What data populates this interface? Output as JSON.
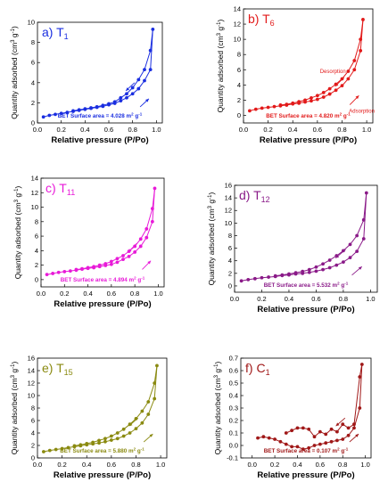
{
  "figure": {
    "panels": [
      {
        "id": "a",
        "label": "a) T",
        "label_sub": "1",
        "color": "#1a2ee0",
        "annotation": "BET Surface area = 4.028 m",
        "annotation_unit": "2",
        "annotation_tail": " g",
        "annotation_exp": "-1",
        "arrow_labels": [],
        "chart_data": {
          "type": "line",
          "xlabel": "Relative pressure (P/Po)",
          "ylabel": "Quantity adsorbed (cm",
          "ylabel_unit": "3",
          "ylabel_tail": " g",
          "ylabel_exp": "-1",
          "ylabel_close": ")",
          "xlim": [
            0,
            1.05
          ],
          "ylim": [
            0,
            10
          ],
          "xticks": [
            0.0,
            0.2,
            0.4,
            0.6,
            0.8,
            1.0
          ],
          "yticks": [
            0,
            2,
            4,
            6,
            8,
            10
          ],
          "xtick_labels": [
            "0.0",
            "0.2",
            "0.4",
            "0.6",
            "0.8",
            "1.0"
          ],
          "ytick_labels": [
            "0",
            "2",
            "4",
            "6",
            "8",
            "10"
          ],
          "series": [
            {
              "role": "adsorption",
              "x": [
                0.05,
                0.1,
                0.15,
                0.2,
                0.25,
                0.3,
                0.35,
                0.4,
                0.45,
                0.5,
                0.55,
                0.6,
                0.65,
                0.7,
                0.75,
                0.8,
                0.85,
                0.9,
                0.95,
                0.97
              ],
              "y": [
                0.6,
                0.75,
                0.85,
                0.95,
                1.05,
                1.15,
                1.25,
                1.35,
                1.45,
                1.55,
                1.65,
                1.8,
                1.95,
                2.2,
                2.5,
                2.9,
                3.4,
                4.2,
                5.3,
                9.3
              ]
            },
            {
              "role": "desorption",
              "x": [
                0.97,
                0.95,
                0.9,
                0.85,
                0.8,
                0.75,
                0.7,
                0.65,
                0.6,
                0.55,
                0.5,
                0.45,
                0.4,
                0.35,
                0.3
              ],
              "y": [
                9.3,
                7.2,
                5.3,
                4.3,
                3.5,
                2.9,
                2.5,
                2.1,
                1.9,
                1.75,
                1.6,
                1.5,
                1.4,
                1.3,
                1.2
              ]
            }
          ]
        }
      },
      {
        "id": "b",
        "label": "b) T",
        "label_sub": "6",
        "color": "#e21a1a",
        "annotation": "BET Surface area = 4.820 m",
        "annotation_unit": "2",
        "annotation_tail": " g",
        "annotation_exp": "-1",
        "arrow_labels": [
          "Desorption",
          "Adsorption"
        ],
        "chart_data": {
          "type": "line",
          "xlabel": "Relative pressure (P/Po)",
          "ylabel": "Quantity adsorbed (cm",
          "ylabel_unit": "3",
          "ylabel_tail": " g",
          "ylabel_exp": "-1",
          "ylabel_close": ")",
          "xlim": [
            0,
            1.05
          ],
          "ylim": [
            -1,
            14
          ],
          "xticks": [
            0.0,
            0.2,
            0.4,
            0.6,
            0.8,
            1.0
          ],
          "yticks": [
            0,
            2,
            4,
            6,
            8,
            10,
            12,
            14
          ],
          "xtick_labels": [
            "0.0",
            "0.2",
            "0.4",
            "0.6",
            "0.8",
            "1.0"
          ],
          "ytick_labels": [
            "0",
            "2",
            "4",
            "6",
            "8",
            "10",
            "12",
            "14"
          ],
          "series": [
            {
              "role": "adsorption",
              "x": [
                0.05,
                0.1,
                0.15,
                0.2,
                0.25,
                0.3,
                0.35,
                0.4,
                0.45,
                0.5,
                0.55,
                0.6,
                0.65,
                0.7,
                0.75,
                0.8,
                0.85,
                0.9,
                0.95,
                0.97
              ],
              "y": [
                0.6,
                0.8,
                0.95,
                1.05,
                1.15,
                1.25,
                1.35,
                1.5,
                1.6,
                1.75,
                1.9,
                2.1,
                2.4,
                2.8,
                3.3,
                3.9,
                4.8,
                6.0,
                8.5,
                12.6
              ]
            },
            {
              "role": "desorption",
              "x": [
                0.97,
                0.95,
                0.9,
                0.85,
                0.8,
                0.75,
                0.7,
                0.65,
                0.6,
                0.55,
                0.5,
                0.45,
                0.4,
                0.35,
                0.3
              ],
              "y": [
                12.6,
                10.0,
                7.2,
                5.8,
                4.8,
                4.1,
                3.5,
                3.0,
                2.6,
                2.3,
                2.0,
                1.8,
                1.6,
                1.45,
                1.35
              ]
            }
          ]
        }
      },
      {
        "id": "c",
        "label": "c) T",
        "label_sub": "11",
        "color": "#e81ad8",
        "annotation": "BET Surface area = 4.894 m",
        "annotation_unit": "2",
        "annotation_tail": " g",
        "annotation_exp": "-1",
        "arrow_labels": [],
        "chart_data": {
          "type": "line",
          "xlabel": "Relative pressure (P/Po)",
          "ylabel": "Quantity adsorbed (cm",
          "ylabel_unit": "3",
          "ylabel_tail": " g",
          "ylabel_exp": "-1",
          "ylabel_close": ")",
          "xlim": [
            0,
            1.05
          ],
          "ylim": [
            -1,
            14
          ],
          "xticks": [
            0.0,
            0.2,
            0.4,
            0.6,
            0.8,
            1.0
          ],
          "yticks": [
            0,
            2,
            4,
            6,
            8,
            10,
            12,
            14
          ],
          "xtick_labels": [
            "0.0",
            "0.2",
            "0.4",
            "0.6",
            "0.8",
            "1.0"
          ],
          "ytick_labels": [
            "0",
            "2",
            "4",
            "6",
            "8",
            "10",
            "12",
            "14"
          ],
          "series": [
            {
              "role": "adsorption",
              "x": [
                0.05,
                0.1,
                0.15,
                0.2,
                0.25,
                0.3,
                0.35,
                0.4,
                0.45,
                0.5,
                0.55,
                0.6,
                0.65,
                0.7,
                0.75,
                0.8,
                0.85,
                0.9,
                0.95,
                0.97
              ],
              "y": [
                0.7,
                0.85,
                1.0,
                1.1,
                1.2,
                1.3,
                1.45,
                1.55,
                1.65,
                1.8,
                1.95,
                2.1,
                2.4,
                2.8,
                3.2,
                3.8,
                4.6,
                5.8,
                8.0,
                12.6
              ]
            },
            {
              "role": "desorption",
              "x": [
                0.97,
                0.95,
                0.9,
                0.85,
                0.8,
                0.75,
                0.7,
                0.65,
                0.6,
                0.55,
                0.5,
                0.45,
                0.4,
                0.35,
                0.3
              ],
              "y": [
                12.6,
                9.8,
                7.0,
                5.6,
                4.6,
                3.9,
                3.3,
                2.9,
                2.5,
                2.2,
                2.0,
                1.8,
                1.65,
                1.5,
                1.4
              ]
            }
          ]
        }
      },
      {
        "id": "d",
        "label": "d) T",
        "label_sub": "12",
        "color": "#8a1a88",
        "annotation": "BET Surface area = 5.532 m",
        "annotation_unit": "2",
        "annotation_tail": " g",
        "annotation_exp": "-1",
        "arrow_labels": [],
        "chart_data": {
          "type": "line",
          "xlabel": "Relative pressure (P/Po)",
          "ylabel": "Quantity adsorbed (cm",
          "ylabel_unit": "3",
          "ylabel_tail": " g",
          "ylabel_exp": "-1",
          "ylabel_close": ")",
          "xlim": [
            0,
            1.05
          ],
          "ylim": [
            -1,
            16
          ],
          "xticks": [
            0.0,
            0.2,
            0.4,
            0.6,
            0.8,
            1.0
          ],
          "yticks": [
            0,
            2,
            4,
            6,
            8,
            10,
            12,
            14,
            16
          ],
          "xtick_labels": [
            "0.0",
            "0.2",
            "0.4",
            "0.6",
            "0.8",
            "1.0"
          ],
          "ytick_labels": [
            "0",
            "2",
            "4",
            "6",
            "8",
            "10",
            "12",
            "14",
            "16"
          ],
          "series": [
            {
              "role": "adsorption",
              "x": [
                0.05,
                0.1,
                0.15,
                0.2,
                0.25,
                0.3,
                0.35,
                0.4,
                0.45,
                0.5,
                0.55,
                0.6,
                0.65,
                0.7,
                0.75,
                0.8,
                0.85,
                0.9,
                0.95,
                0.97
              ],
              "y": [
                0.8,
                1.0,
                1.15,
                1.3,
                1.4,
                1.5,
                1.65,
                1.75,
                1.9,
                2.0,
                2.15,
                2.35,
                2.6,
                2.9,
                3.3,
                3.8,
                4.5,
                5.5,
                7.5,
                14.8
              ]
            },
            {
              "role": "desorption",
              "x": [
                0.97,
                0.95,
                0.9,
                0.85,
                0.8,
                0.75,
                0.7,
                0.65,
                0.6,
                0.55,
                0.5,
                0.45,
                0.4,
                0.35,
                0.3
              ],
              "y": [
                14.8,
                10.5,
                8.0,
                6.6,
                5.6,
                4.8,
                4.1,
                3.5,
                3.0,
                2.6,
                2.3,
                2.1,
                1.9,
                1.75,
                1.6
              ]
            }
          ]
        }
      },
      {
        "id": "e",
        "label": "e) T",
        "label_sub": "15",
        "color": "#8a8a10",
        "annotation": "BET Surface area = 5.880 m",
        "annotation_unit": "2",
        "annotation_tail": " g",
        "annotation_exp": "-1",
        "arrow_labels": [],
        "chart_data": {
          "type": "line",
          "xlabel": "Relative pressure (P/Po)",
          "ylabel": "Quantity adsorbed (cm",
          "ylabel_unit": "3",
          "ylabel_tail": " g",
          "ylabel_exp": "-1",
          "ylabel_close": ")",
          "xlim": [
            0,
            1.05
          ],
          "ylim": [
            0,
            16
          ],
          "xticks": [
            0.0,
            0.2,
            0.4,
            0.6,
            0.8,
            1.0
          ],
          "yticks": [
            0,
            2,
            4,
            6,
            8,
            10,
            12,
            14,
            16
          ],
          "xtick_labels": [
            "0.0",
            "0.2",
            "0.4",
            "0.6",
            "0.8",
            "1.0"
          ],
          "ytick_labels": [
            "0",
            "2",
            "4",
            "6",
            "8",
            "10",
            "12",
            "14",
            "16"
          ],
          "series": [
            {
              "role": "adsorption",
              "x": [
                0.05,
                0.1,
                0.15,
                0.2,
                0.25,
                0.3,
                0.35,
                0.4,
                0.45,
                0.5,
                0.55,
                0.6,
                0.65,
                0.7,
                0.75,
                0.8,
                0.85,
                0.9,
                0.95,
                0.97
              ],
              "y": [
                1.0,
                1.2,
                1.35,
                1.5,
                1.65,
                1.8,
                1.95,
                2.1,
                2.25,
                2.4,
                2.6,
                2.85,
                3.1,
                3.5,
                4.0,
                4.7,
                5.6,
                7.0,
                9.5,
                14.8
              ]
            },
            {
              "role": "desorption",
              "x": [
                0.97,
                0.95,
                0.9,
                0.85,
                0.8,
                0.75,
                0.7,
                0.65,
                0.6,
                0.55,
                0.5,
                0.45,
                0.4,
                0.35,
                0.3
              ],
              "y": [
                14.8,
                12.0,
                9.0,
                7.5,
                6.3,
                5.4,
                4.6,
                4.0,
                3.5,
                3.1,
                2.8,
                2.5,
                2.3,
                2.1,
                1.95
              ]
            }
          ]
        }
      },
      {
        "id": "f",
        "label": "f) C",
        "label_sub": "1",
        "color": "#a01818",
        "annotation": "BET Surface area = 0.107 m",
        "annotation_unit": "2",
        "annotation_tail": " g",
        "annotation_exp": "-1",
        "arrow_labels": [],
        "chart_data": {
          "type": "line",
          "xlabel": "Relative pressure (P/Po)",
          "ylabel": "Quantity adsorbed (cm",
          "ylabel_unit": "3",
          "ylabel_tail": " g",
          "ylabel_exp": "-1",
          "ylabel_close": ")",
          "xlim": [
            -0.1,
            1.05
          ],
          "ylim": [
            -0.1,
            0.7
          ],
          "xticks": [
            0.0,
            0.2,
            0.4,
            0.6,
            0.8,
            1.0
          ],
          "yticks": [
            -0.1,
            0.0,
            0.1,
            0.2,
            0.3,
            0.4,
            0.5,
            0.6,
            0.7
          ],
          "xtick_labels": [
            "0.0",
            "0.2",
            "0.4",
            "0.6",
            "0.8",
            "1.0"
          ],
          "ytick_labels": [
            "-0.1",
            "0.0",
            "0.1",
            "0.2",
            "0.3",
            "0.4",
            "0.5",
            "0.6",
            "0.7"
          ],
          "series": [
            {
              "role": "adsorption",
              "x": [
                0.05,
                0.1,
                0.15,
                0.2,
                0.25,
                0.3,
                0.35,
                0.4,
                0.45,
                0.5,
                0.55,
                0.6,
                0.65,
                0.7,
                0.75,
                0.8,
                0.85,
                0.9,
                0.95,
                0.97
              ],
              "y": [
                0.06,
                0.07,
                0.06,
                0.05,
                0.03,
                0.01,
                -0.01,
                -0.01,
                -0.03,
                -0.02,
                0.0,
                0.01,
                0.02,
                0.03,
                0.04,
                0.05,
                0.08,
                0.14,
                0.3,
                0.65
              ]
            },
            {
              "role": "desorption",
              "x": [
                0.97,
                0.95,
                0.9,
                0.85,
                0.8,
                0.75,
                0.7,
                0.65,
                0.6,
                0.55,
                0.5,
                0.45,
                0.4,
                0.35,
                0.3
              ],
              "y": [
                0.65,
                0.55,
                0.17,
                0.14,
                0.17,
                0.11,
                0.13,
                0.09,
                0.11,
                0.07,
                0.13,
                0.14,
                0.14,
                0.12,
                0.1
              ]
            }
          ]
        }
      }
    ]
  }
}
